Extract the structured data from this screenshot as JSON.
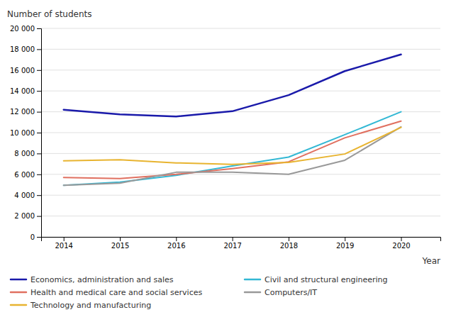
{
  "chart_data": {
    "type": "line",
    "xlabel": "Year",
    "ylabel": "Number of students",
    "x": [
      2014,
      2015,
      2016,
      2017,
      2018,
      2019,
      2020
    ],
    "series": [
      {
        "name": "Economics, administration and sales",
        "color": "#1a1aaa",
        "values": [
          12200,
          11750,
          11550,
          12050,
          13600,
          15900,
          17500
        ]
      },
      {
        "name": "Civil and structural engineering",
        "color": "#33b8d4",
        "values": [
          4950,
          5250,
          5900,
          6800,
          7650,
          9800,
          12000
        ]
      },
      {
        "name": "Health and medical care and social services",
        "color": "#e07060",
        "values": [
          5700,
          5600,
          6000,
          6550,
          7200,
          9500,
          11100
        ]
      },
      {
        "name": "Computers/IT",
        "color": "#999999",
        "values": [
          4950,
          5150,
          6200,
          6200,
          6000,
          7350,
          10550
        ]
      },
      {
        "name": "Technology and manufacturing",
        "color": "#e8b430",
        "values": [
          7300,
          7400,
          7100,
          6950,
          7150,
          7950,
          10500
        ]
      }
    ],
    "xlim": [
      2013.6,
      2020.7
    ],
    "xticks": [
      2014,
      2015,
      2016,
      2017,
      2018,
      2019,
      2020
    ],
    "ylim": [
      0,
      20000
    ],
    "yticks": [
      0,
      {
        "value": 2000,
        "label": "2 000"
      },
      {
        "value": 4000,
        "label": "4 000"
      },
      {
        "value": 6000,
        "label": "6 000"
      },
      {
        "value": 8000,
        "label": "8 000"
      },
      {
        "value": 10000,
        "label": "10 000"
      },
      {
        "value": 12000,
        "label": "12 000"
      },
      {
        "value": 14000,
        "label": "14 000"
      },
      {
        "value": 16000,
        "label": "16 000"
      },
      {
        "value": 18000,
        "label": "18 000"
      },
      {
        "value": 20000,
        "label": "20 000"
      }
    ],
    "grid": true,
    "legend": "bottom"
  }
}
